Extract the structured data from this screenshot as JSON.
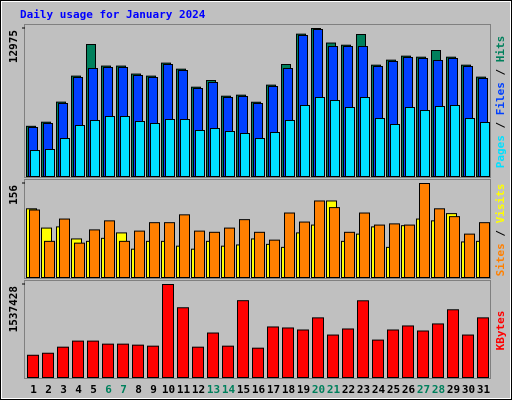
{
  "chart_data": [
    {
      "type": "bar",
      "title": "Daily usage for January 2024",
      "ylim": [
        0,
        12975
      ],
      "yticks": [
        12975
      ],
      "legend_separator": " / ",
      "series": [
        {
          "name": "Hits",
          "color": "#00805c",
          "values": [
            4400,
            4760,
            6520,
            8800,
            11572,
            9680,
            9680,
            8980,
            8800,
            9940,
            9410,
            7830,
            8416,
            7040,
            7130,
            6510,
            8010,
            9819,
            12480,
            12975,
            11700,
            11510,
            12449,
            9760,
            10200,
            10550,
            10460,
            11046,
            10460,
            9760,
            8710
          ]
        },
        {
          "name": "Files",
          "color": "#0040ff",
          "values": [
            4296,
            4647,
            6400,
            8679,
            9468,
            9556,
            9556,
            8855,
            8679,
            9819,
            9293,
            7715,
            8241,
            6926,
            7014,
            6400,
            7890,
            9468,
            12361,
            12887,
            11397,
            11397,
            11397,
            9644,
            10082,
            10433,
            10345,
            10170,
            10345,
            9644,
            8592
          ]
        },
        {
          "name": "Pages",
          "color": "#00e0ff",
          "values": [
            2279,
            2367,
            3331,
            4471,
            4910,
            5260,
            5260,
            4822,
            4647,
            4997,
            4997,
            4033,
            4208,
            3945,
            3770,
            3331,
            3857,
            4910,
            6225,
            6926,
            6663,
            6049,
            6926,
            5085,
            4559,
            6049,
            5786,
            6137,
            6225,
            5085,
            4734
          ]
        }
      ]
    },
    {
      "type": "bar",
      "ylim": [
        0,
        156
      ],
      "yticks": [
        156
      ],
      "legend_separator": " / ",
      "series": [
        {
          "name": "Visits",
          "color": "#ffff00",
          "values": [
            114,
            82,
            84,
            64,
            60,
            65,
            74,
            47,
            60,
            60,
            52,
            47,
            60,
            52,
            54,
            64,
            55,
            50,
            74,
            87,
            127,
            60,
            72,
            84,
            50,
            86,
            97,
            94,
            106,
            59,
            60
          ]
        },
        {
          "name": "Sites",
          "color": "#ff8000",
          "values": [
            112,
            60,
            97,
            57,
            79,
            94,
            60,
            77,
            91,
            91,
            104,
            77,
            75,
            82,
            96,
            75,
            62,
            107,
            92,
            127,
            116,
            75,
            107,
            87,
            89,
            87,
            156,
            114,
            101,
            72,
            91
          ]
        }
      ]
    },
    {
      "type": "bar",
      "ylim": [
        0,
        1537428
      ],
      "yticks": [
        1537428
      ],
      "legend_separator": " / ",
      "categories": [
        "1",
        "2",
        "3",
        "4",
        "5",
        "6",
        "7",
        "8",
        "9",
        "10",
        "11",
        "12",
        "13",
        "14",
        "15",
        "16",
        "17",
        "18",
        "19",
        "20",
        "21",
        "22",
        "23",
        "24",
        "25",
        "26",
        "27",
        "28",
        "29",
        "30",
        "31"
      ],
      "category_colors": [
        "#000000",
        "#000000",
        "#000000",
        "#000000",
        "#000000",
        "#00805c",
        "#00805c",
        "#000000",
        "#000000",
        "#000000",
        "#000000",
        "#000000",
        "#00805c",
        "#00805c",
        "#000000",
        "#000000",
        "#000000",
        "#000000",
        "#000000",
        "#00805c",
        "#00805c",
        "#000000",
        "#000000",
        "#000000",
        "#000000",
        "#000000",
        "#00805c",
        "#00805c",
        "#000000",
        "#000000",
        "#000000"
      ],
      "series": [
        {
          "name": "KBytes",
          "color": "#ff0000",
          "values": [
            367642,
            401064,
            501330,
            601596,
            601596,
            551463,
            551463,
            534752,
            518041,
            1537428,
            1153059,
            501330,
            735284,
            518041,
            1270036,
            484619,
            835550,
            818839,
            785417,
            985949,
            701862,
            802128,
            1268300,
            618307,
            785417,
            852261,
            768706,
            885683,
            1119637,
            701862,
            985949
          ]
        }
      ]
    }
  ]
}
